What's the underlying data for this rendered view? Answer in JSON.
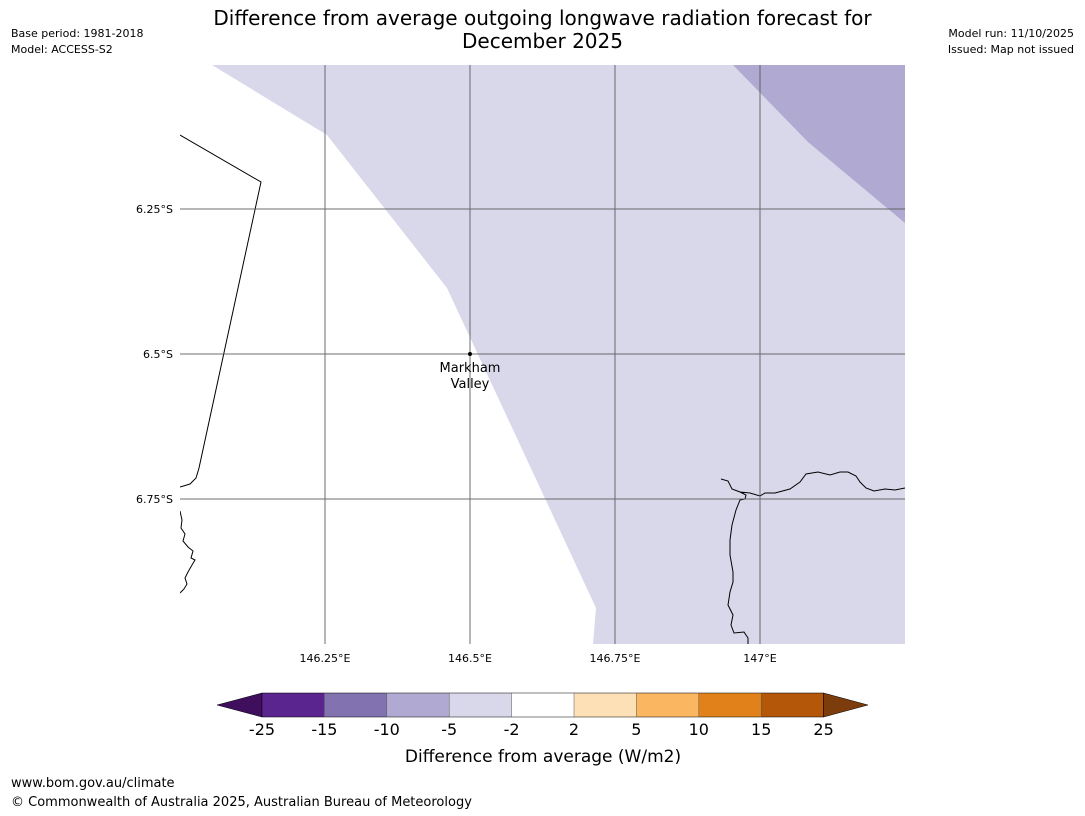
{
  "header": {
    "title_line1": "Difference from average outgoing longwave radiation forecast for",
    "title_line2": "December 2025",
    "base_period": "Base period: 1981-2018",
    "model": "Model: ACCESS-S2",
    "model_run": "Model run: 11/10/2025",
    "issued": "Issued: Map not issued"
  },
  "map": {
    "latitude_labels": [
      "6.25°S",
      "6.5°S",
      "6.75°S"
    ],
    "longitude_labels": [
      "146.25°E",
      "146.5°E",
      "146.75°E",
      "147°E"
    ],
    "place": {
      "name_line1": "Markham",
      "name_line2": "Valley"
    },
    "colors": {
      "light_purple": "#d8d8ea",
      "medium_purple": "#b0aad2",
      "gridline": "#555555"
    }
  },
  "colorbar": {
    "title": "Difference from average (W/m2)",
    "tick_labels": [
      "-25",
      "-15",
      "-10",
      "-5",
      "-2",
      "2",
      "5",
      "10",
      "15",
      "25"
    ],
    "colors": [
      "#3f0f5e",
      "#5b2590",
      "#8273b0",
      "#b0aad2",
      "#d8d8ea",
      "#ffffff",
      "#fde0b5",
      "#fbb662",
      "#e08219",
      "#b45709",
      "#7d3c0c"
    ]
  },
  "footer": {
    "url": "www.bom.gov.au/climate",
    "copyright": "© Commonwealth of Australia 2025, Australian Bureau of Meteorology"
  }
}
